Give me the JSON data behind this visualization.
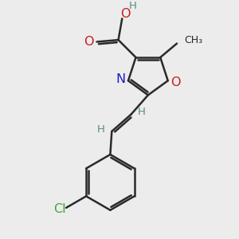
{
  "bg_color": "#ececec",
  "bond_color": "#2a2a2a",
  "N_color": "#1a1acc",
  "O_color": "#cc1a1a",
  "Cl_color": "#3aaa3a",
  "H_color": "#5a8a8a",
  "bond_width": 1.8,
  "dbo": 0.03,
  "font_size": 11.5,
  "small_font_size": 9.5,
  "figsize": [
    3.0,
    3.0
  ],
  "dpi": 100,
  "xlim": [
    0.0,
    3.0
  ],
  "ylim": [
    0.0,
    3.0
  ]
}
